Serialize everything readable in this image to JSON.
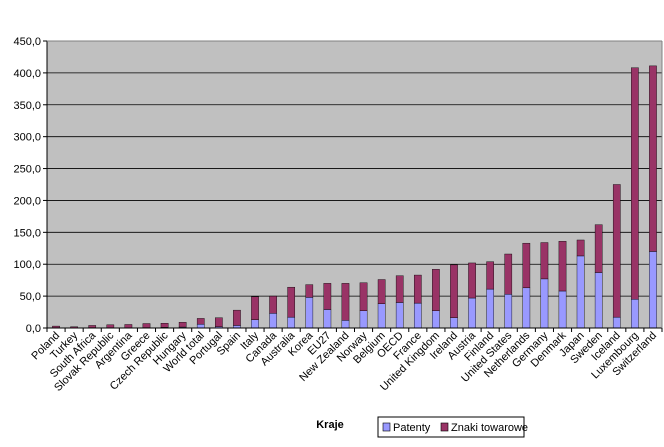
{
  "chart_data": {
    "type": "bar",
    "stacked": true,
    "title": "",
    "xlabel": "Kraje",
    "ylabel": "",
    "ylim": [
      0,
      450
    ],
    "yticks": [
      "0,0",
      "50,0",
      "100,0",
      "150,0",
      "200,0",
      "250,0",
      "300,0",
      "350,0",
      "400,0",
      "450,0"
    ],
    "grid": true,
    "legend_position": "bottom-right",
    "categories": [
      "Poland",
      "Turkey",
      "South Africa",
      "Slovak Republic",
      "Argentina",
      "Greece",
      "Czech Republic",
      "Hungary",
      "World total",
      "Portugal",
      "Spain",
      "Italy",
      "Canada",
      "Australia",
      "Korea",
      "EU27",
      "New Zealand",
      "Norway",
      "Belgium",
      "OECD",
      "France",
      "United Kingdom",
      "Ireland",
      "Austria",
      "Finland",
      "United States",
      "Netherlands",
      "Germany",
      "Denmark",
      "Japan",
      "Sweden",
      "Iceland",
      "Luxembourg",
      "Switzerland"
    ],
    "series": [
      {
        "name": "Patenty",
        "color": "#9999ff",
        "values": [
          0.5,
          0.3,
          0.6,
          0.5,
          0.4,
          0.6,
          1.0,
          1.5,
          6,
          2,
          4,
          13,
          23,
          17,
          48,
          29,
          12,
          27,
          38,
          40,
          39,
          27,
          16,
          47,
          61,
          53,
          63,
          77,
          58,
          113,
          87,
          17,
          45,
          120
        ]
      },
      {
        "name": "Znaki towarowe",
        "color": "#993366",
        "values": [
          2.5,
          1.7,
          3.4,
          4.5,
          5.1,
          6.4,
          6.5,
          7.5,
          9,
          14,
          24,
          36,
          27,
          47,
          20,
          41,
          58,
          44,
          38,
          42,
          44,
          65,
          83,
          55,
          43,
          63,
          70,
          57,
          78,
          25,
          75,
          208,
          363,
          291
        ]
      }
    ]
  },
  "legend": {
    "items": [
      {
        "label": "Patenty",
        "color": "#9999ff"
      },
      {
        "label": "Znaki towarowe",
        "color": "#993366"
      }
    ]
  },
  "colors": {
    "plot_background": "#c0c0c0",
    "gridline": "#000000",
    "axis": "#000000"
  }
}
